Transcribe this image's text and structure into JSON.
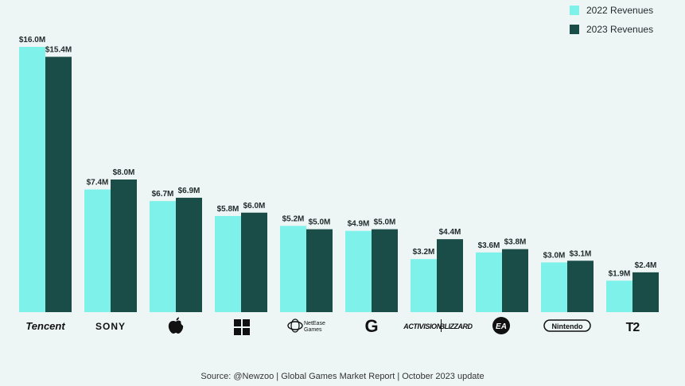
{
  "chart_data": {
    "type": "bar",
    "categories": [
      "Tencent",
      "SONY",
      "Apple",
      "Microsoft",
      "NetEase Games",
      "Google",
      "ACTIVISION BLIZZARD",
      "EA",
      "Nintendo",
      "T2"
    ],
    "series": [
      {
        "name": "2022 Revenues",
        "color": "#7ef2ea",
        "values": [
          16.0,
          7.4,
          6.7,
          5.8,
          5.2,
          4.9,
          3.2,
          3.6,
          3.0,
          1.9
        ],
        "labels": [
          "$16.0M",
          "$7.4M",
          "$6.7M",
          "$5.8M",
          "$5.2M",
          "$4.9M",
          "$3.2M",
          "$3.6M",
          "$3.0M",
          "$1.9M"
        ]
      },
      {
        "name": "2023 Revenues",
        "color": "#1a4d48",
        "values": [
          15.4,
          8.0,
          6.9,
          6.0,
          5.0,
          5.0,
          4.4,
          3.8,
          3.1,
          2.4
        ],
        "labels": [
          "$15.4M",
          "$8.0M",
          "$6.9M",
          "$6.0M",
          "$5.0M",
          "$5.0M",
          "$4.4M",
          "$3.8M",
          "$3.1M",
          "$2.4M"
        ]
      }
    ],
    "ylim": [
      0,
      16
    ],
    "grid": false,
    "legend": "top-right"
  },
  "legend": {
    "item_2022": "2022 Revenues",
    "item_2023": "2023 Revenues"
  },
  "logos": {
    "tencent": "Tencent",
    "sony": "SONY",
    "netease_main": "NetEase",
    "netease_sub": "Games",
    "google": "G",
    "activision": "ACTIVISION",
    "blizzard": "BLIZZARD",
    "ea": "EA",
    "nintendo": "Nintendo",
    "t2": "T2"
  },
  "source": "Source: @Newzoo | Global Games Market Report | October 2023 update"
}
